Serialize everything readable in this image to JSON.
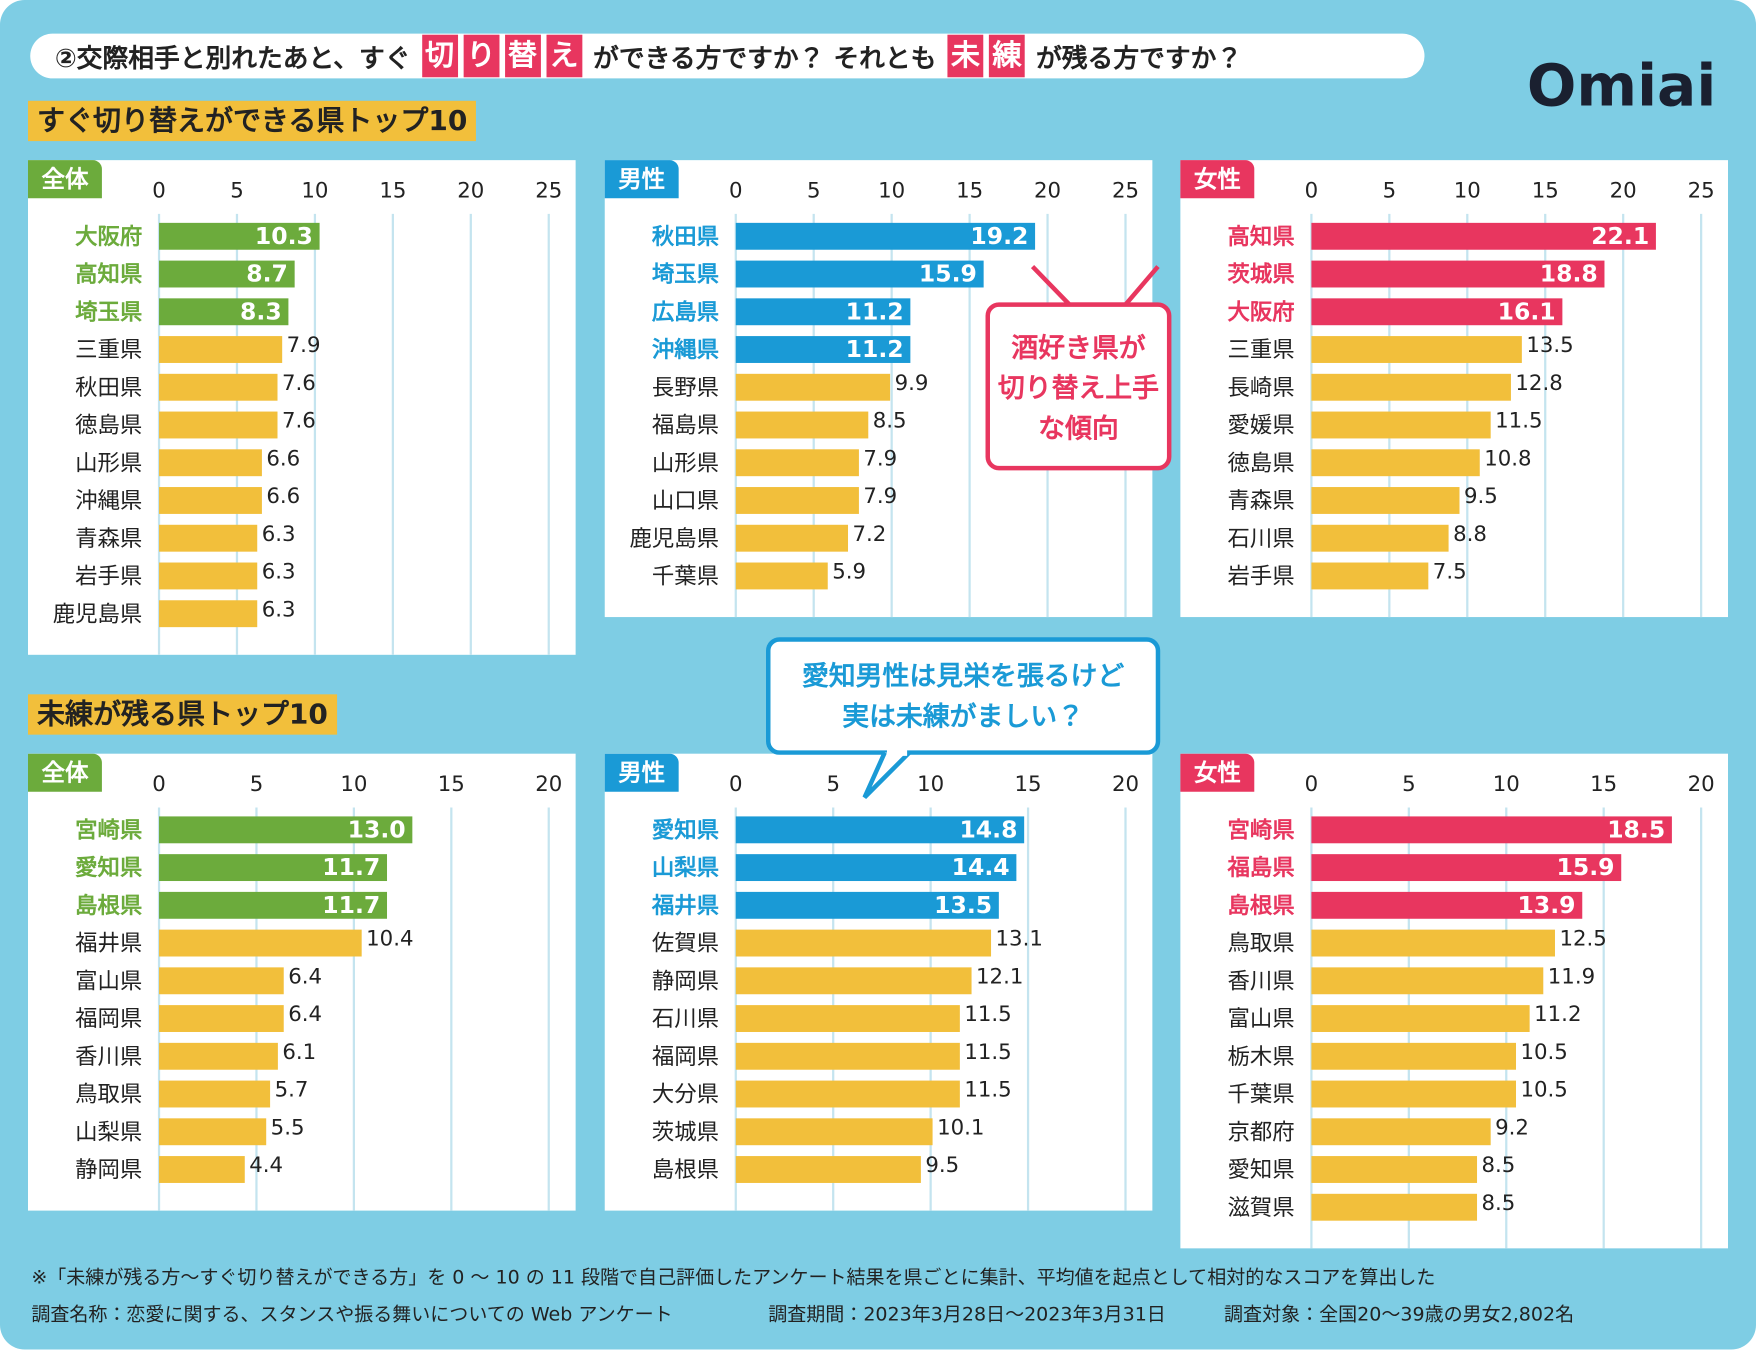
{
  "header": {
    "title_parts": [
      {
        "text": "②交際相手と別れたあと、すぐ",
        "boxed": false
      },
      {
        "text": "切",
        "boxed": true
      },
      {
        "text": "り",
        "boxed": true
      },
      {
        "text": "替",
        "boxed": true
      },
      {
        "text": "え",
        "boxed": true
      },
      {
        "text": "ができる方ですか？ それとも",
        "boxed": false
      },
      {
        "text": "未",
        "boxed": true
      },
      {
        "text": "練",
        "boxed": true
      },
      {
        "text": "が残る方ですか？",
        "boxed": false
      }
    ],
    "logo": "Omiai"
  },
  "sections": [
    "すぐ切り替えができる県トップ10",
    "未練が残る県トップ10"
  ],
  "callouts": [
    {
      "lines": [
        "酒好き県が",
        "切り替え上手",
        "な傾向"
      ]
    },
    {
      "lines": [
        "愛知男性は見栄を張るけど",
        "実は未練がましい？"
      ]
    }
  ],
  "footnotes": [
    "※「未練が残る方〜すぐ切り替えができる方」を 0 〜 10 の 11 段階で自己評価したアンケート結果を県ごとに集計、平均値を起点として相対的なスコアを算出した",
    "調査名称：恋愛に関する、スタンスや振る舞いについての Web アンケート",
    "調査期間：2023年3月28日〜2023年3月31日",
    "調査対象：全国20〜39歳の男女2,802名"
  ],
  "chart_data": [
    {
      "type": "bar",
      "orientation": "horizontal",
      "panel_label": "全体",
      "categories": [
        "大阪府",
        "高知県",
        "埼玉県",
        "三重県",
        "秋田県",
        "徳島県",
        "山形県",
        "沖縄県",
        "青森県",
        "岩手県",
        "鹿児島県"
      ],
      "values": [
        10.3,
        8.7,
        8.3,
        7.9,
        7.6,
        7.6,
        6.6,
        6.6,
        6.3,
        6.3,
        6.3
      ],
      "color": "#f2bf3b",
      "highlight_color": "#6cab3c",
      "highlight_top": 3,
      "xlim": [
        0,
        25
      ],
      "xticks": [
        0,
        5,
        10,
        15,
        20,
        25
      ],
      "grid": true
    },
    {
      "type": "bar",
      "orientation": "horizontal",
      "panel_label": "男性",
      "categories": [
        "秋田県",
        "埼玉県",
        "広島県",
        "沖縄県",
        "長野県",
        "福島県",
        "山形県",
        "山口県",
        "鹿児島県",
        "千葉県"
      ],
      "values": [
        19.2,
        15.9,
        11.2,
        11.2,
        9.9,
        8.5,
        7.9,
        7.9,
        7.2,
        5.9
      ],
      "color": "#f2bf3b",
      "highlight_color": "#1a9ad6",
      "highlight_top": 4,
      "xlim": [
        0,
        25
      ],
      "xticks": [
        0,
        5,
        10,
        15,
        20,
        25
      ],
      "grid": true
    },
    {
      "type": "bar",
      "orientation": "horizontal",
      "panel_label": "女性",
      "categories": [
        "高知県",
        "茨城県",
        "大阪府",
        "三重県",
        "長崎県",
        "愛媛県",
        "徳島県",
        "青森県",
        "石川県",
        "岩手県"
      ],
      "values": [
        22.1,
        18.8,
        16.1,
        13.5,
        12.8,
        11.5,
        10.8,
        9.5,
        8.8,
        7.5
      ],
      "color": "#f2bf3b",
      "highlight_color": "#e8365f",
      "highlight_top": 3,
      "xlim": [
        0,
        25
      ],
      "xticks": [
        0,
        5,
        10,
        15,
        20,
        25
      ],
      "grid": true
    },
    {
      "type": "bar",
      "orientation": "horizontal",
      "panel_label": "全体",
      "categories": [
        "宮崎県",
        "愛知県",
        "島根県",
        "福井県",
        "富山県",
        "福岡県",
        "香川県",
        "鳥取県",
        "山梨県",
        "静岡県"
      ],
      "values": [
        13.0,
        11.7,
        11.7,
        10.4,
        6.4,
        6.4,
        6.1,
        5.7,
        5.5,
        4.4
      ],
      "value_labels": [
        "13.0",
        "11.7",
        "11.7",
        "10.4",
        "6.4",
        "6.4",
        "6.1",
        "5.7",
        "5.5",
        "4.4"
      ],
      "color": "#f2bf3b",
      "highlight_color": "#6cab3c",
      "highlight_top": 3,
      "xlim": [
        0,
        20
      ],
      "xticks": [
        0,
        5,
        10,
        15,
        20
      ],
      "grid": true
    },
    {
      "type": "bar",
      "orientation": "horizontal",
      "panel_label": "男性",
      "categories": [
        "愛知県",
        "山梨県",
        "福井県",
        "佐賀県",
        "静岡県",
        "石川県",
        "福岡県",
        "大分県",
        "茨城県",
        "島根県"
      ],
      "values": [
        14.8,
        14.4,
        13.5,
        13.1,
        12.1,
        11.5,
        11.5,
        11.5,
        10.1,
        9.5
      ],
      "color": "#f2bf3b",
      "highlight_color": "#1a9ad6",
      "highlight_top": 3,
      "xlim": [
        0,
        20
      ],
      "xticks": [
        0,
        5,
        10,
        15,
        20
      ],
      "grid": true
    },
    {
      "type": "bar",
      "orientation": "horizontal",
      "panel_label": "女性",
      "categories": [
        "宮崎県",
        "福島県",
        "島根県",
        "鳥取県",
        "香川県",
        "富山県",
        "栃木県",
        "千葉県",
        "京都府",
        "愛知県",
        "滋賀県"
      ],
      "values": [
        18.5,
        15.9,
        13.9,
        12.5,
        11.9,
        11.2,
        10.5,
        10.5,
        9.2,
        8.5,
        8.5
      ],
      "color": "#f2bf3b",
      "highlight_color": "#e8365f",
      "highlight_top": 3,
      "xlim": [
        0,
        20
      ],
      "xticks": [
        0,
        5,
        10,
        15,
        20
      ],
      "grid": true
    }
  ]
}
